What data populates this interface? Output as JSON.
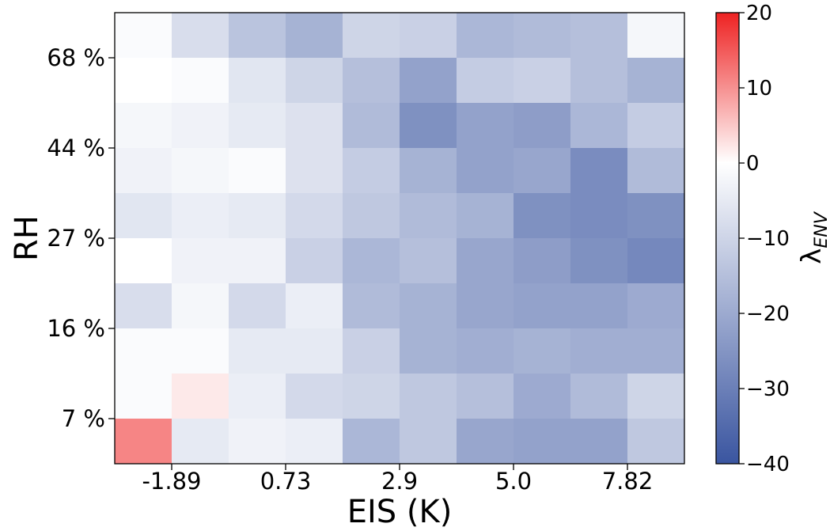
{
  "chart_data": {
    "type": "heatmap",
    "title": "",
    "xlabel": "EIS (K)",
    "ylabel": "RH",
    "x_ticks": [
      "-1.89",
      "0.73",
      "2.9",
      "5.0",
      "7.82"
    ],
    "y_ticks": [
      "7 %",
      "16 %",
      "27 %",
      "44 %",
      "68 %"
    ],
    "colorbar": {
      "label": "λ_ENV",
      "label_main": "λ",
      "label_sub": "ENV",
      "min": -40,
      "max": 20,
      "ticks": [
        "20",
        "10",
        "0",
        "−10",
        "−20",
        "−30",
        "−40"
      ],
      "colors": {
        "low": "#3a55a0",
        "zero": "#ffffff",
        "high": "#ee2222"
      }
    },
    "rows_top_to_bottom": [
      [
        -1,
        -8,
        -14,
        -18,
        -10,
        -11,
        -17,
        -16,
        -15,
        -2
      ],
      [
        0,
        -1,
        -6,
        -10,
        -15,
        -22,
        -12,
        -11,
        -15,
        -18
      ],
      [
        -2,
        -3,
        -5,
        -7,
        -16,
        -26,
        -22,
        -23,
        -17,
        -12
      ],
      [
        -3,
        -2,
        -1,
        -7,
        -12,
        -18,
        -22,
        -21,
        -27,
        -16
      ],
      [
        -6,
        -4,
        -5,
        -9,
        -13,
        -16,
        -18,
        -26,
        -27,
        -26
      ],
      [
        0,
        -3,
        -3,
        -11,
        -17,
        -15,
        -21,
        -23,
        -26,
        -28
      ],
      [
        -8,
        -2,
        -9,
        -4,
        -16,
        -18,
        -21,
        -22,
        -22,
        -20
      ],
      [
        -1,
        -1,
        -5,
        -5,
        -11,
        -18,
        -19,
        -18,
        -19,
        -19
      ],
      [
        -1,
        2,
        -4,
        -9,
        -10,
        -13,
        -15,
        -20,
        -16,
        -10
      ],
      [
        11,
        -5,
        -3,
        -4,
        -17,
        -13,
        -21,
        -22,
        -22,
        -13
      ]
    ]
  }
}
